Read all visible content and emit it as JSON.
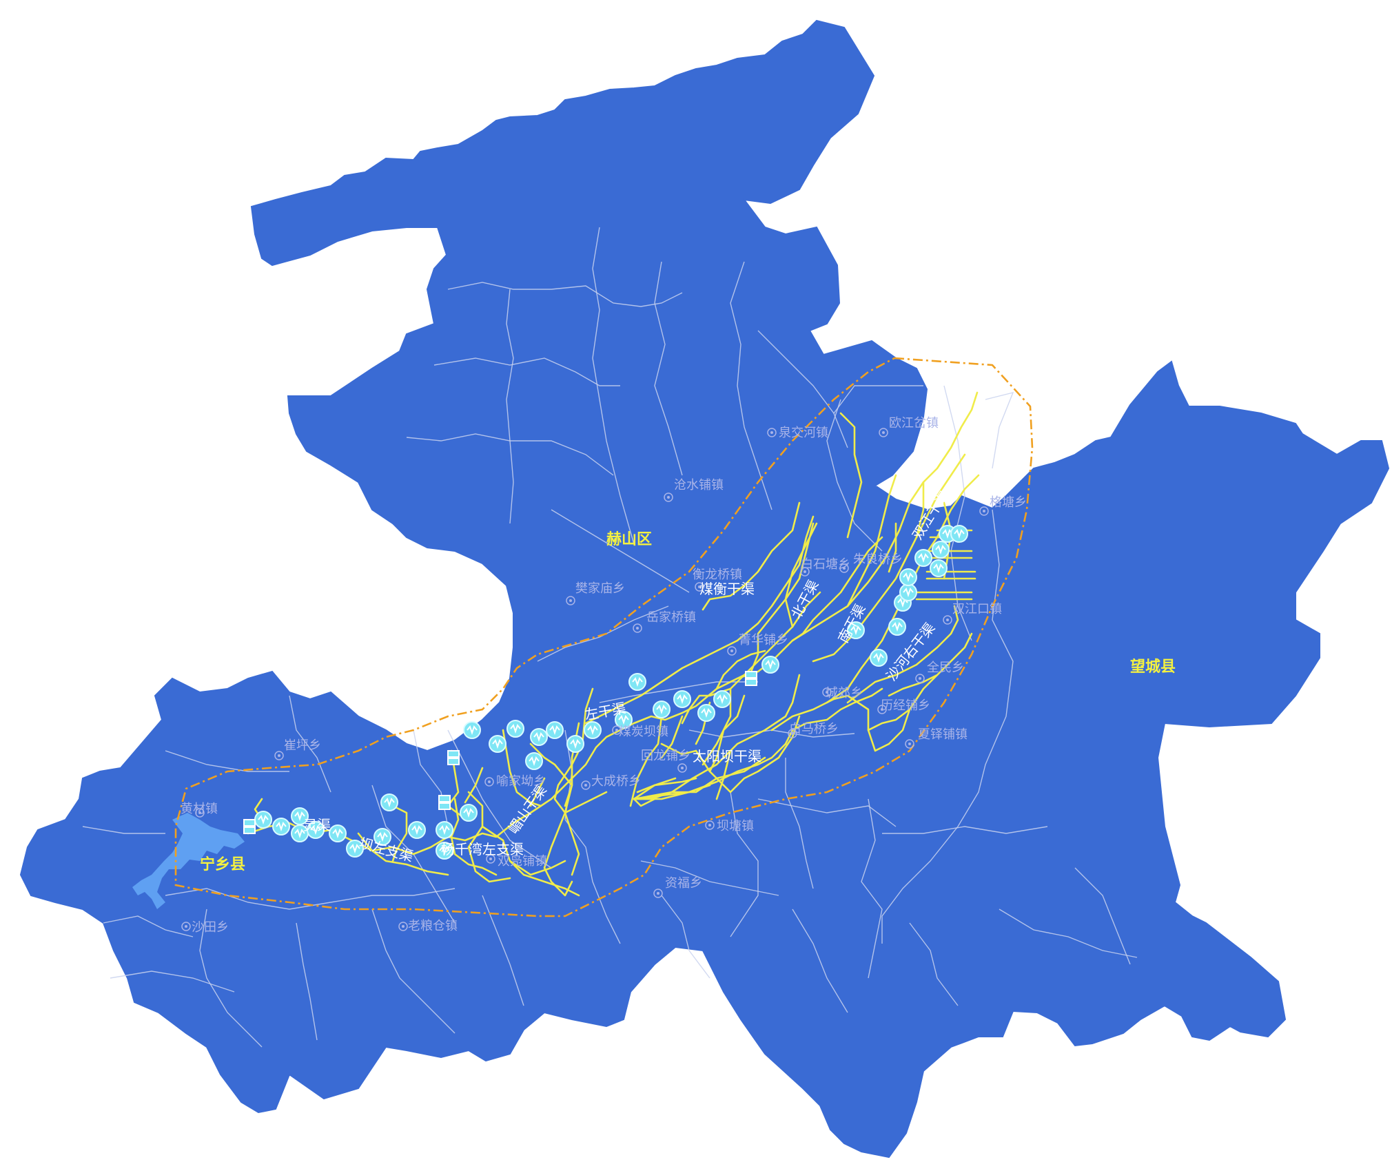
{
  "colors": {
    "land": "#3a6bd4",
    "boundary": "#c9d2ee",
    "canal": "#f0ec4a",
    "irrigation_zone_outline": "#f0a020",
    "station": "#7fe6f5",
    "reservoir": "#5fa0f2",
    "town_label": "#a9b4e8",
    "county_label": "#f4f140"
  },
  "icons": {
    "station": "monitoring-station-icon",
    "sluice": "sluice-gate-icon",
    "town": "town-dot-icon"
  },
  "map": {
    "counties": [
      {
        "id": "heshan",
        "name": "赫山区"
      },
      {
        "id": "wangcheng",
        "name": "望城县"
      },
      {
        "id": "ningxiang",
        "name": "宁乡县"
      }
    ],
    "towns": [
      {
        "id": "quanjiaohe",
        "name": "泉交河镇"
      },
      {
        "id": "oujiangcha",
        "name": "欧江岔镇"
      },
      {
        "id": "cangshuipu",
        "name": "沧水铺镇"
      },
      {
        "id": "getang",
        "name": "格塘乡"
      },
      {
        "id": "baishixiang",
        "name": "白石塘乡"
      },
      {
        "id": "zhuliangqiao",
        "name": "朱良桥乡"
      },
      {
        "id": "fanjiamiao",
        "name": "樊家庙乡"
      },
      {
        "id": "henglongqiao",
        "name": "衡龙桥镇"
      },
      {
        "id": "yuejiaqiao",
        "name": "岳家桥镇"
      },
      {
        "id": "jinghuapu",
        "name": "菁华铺乡"
      },
      {
        "id": "shuangjiangkou",
        "name": "双江口镇"
      },
      {
        "id": "quanmin",
        "name": "全民乡"
      },
      {
        "id": "chengjiao",
        "name": "城郊乡"
      },
      {
        "id": "liyimei",
        "name": "历经铺乡"
      },
      {
        "id": "baimaqiao",
        "name": "白马桥乡"
      },
      {
        "id": "xiaduopu",
        "name": "夏铎铺镇"
      },
      {
        "id": "huilongpu",
        "name": "回龙铺乡"
      },
      {
        "id": "meijiatang",
        "name": "煤炭坝镇"
      },
      {
        "id": "cuiping",
        "name": "崔坪乡"
      },
      {
        "id": "yujiaba",
        "name": "喻家坳乡"
      },
      {
        "id": "dachengqiao",
        "name": "大成桥乡"
      },
      {
        "id": "huangcai",
        "name": "黄材镇"
      },
      {
        "id": "shuangfupu",
        "name": "双凫铺镇"
      },
      {
        "id": "batang",
        "name": "坝塘镇"
      },
      {
        "id": "ziyun",
        "name": "资福乡"
      },
      {
        "id": "shatian",
        "name": "沙田乡"
      },
      {
        "id": "laoliangcang",
        "name": "老粮仓镇"
      }
    ],
    "canals": [
      {
        "id": "meiheng",
        "name": "煤衡干渠"
      },
      {
        "id": "beiganqu",
        "name": "北干渠"
      },
      {
        "id": "nanganqu",
        "name": "南干渠"
      },
      {
        "id": "shaheyou",
        "name": "沙河右干渠"
      },
      {
        "id": "taiyangba",
        "name": "太阳坝干渠"
      },
      {
        "id": "guishan",
        "name": "嵋山干渠"
      },
      {
        "id": "zuoganqu",
        "name": "左干渠"
      },
      {
        "id": "yangjiawan",
        "name": "杨千湾左支渠"
      },
      {
        "id": "bazuo",
        "name": "坝左支渠"
      },
      {
        "id": "shuangjiang",
        "name": "双江干渠"
      },
      {
        "id": "lingqu",
        "name": "灵渠"
      }
    ]
  }
}
